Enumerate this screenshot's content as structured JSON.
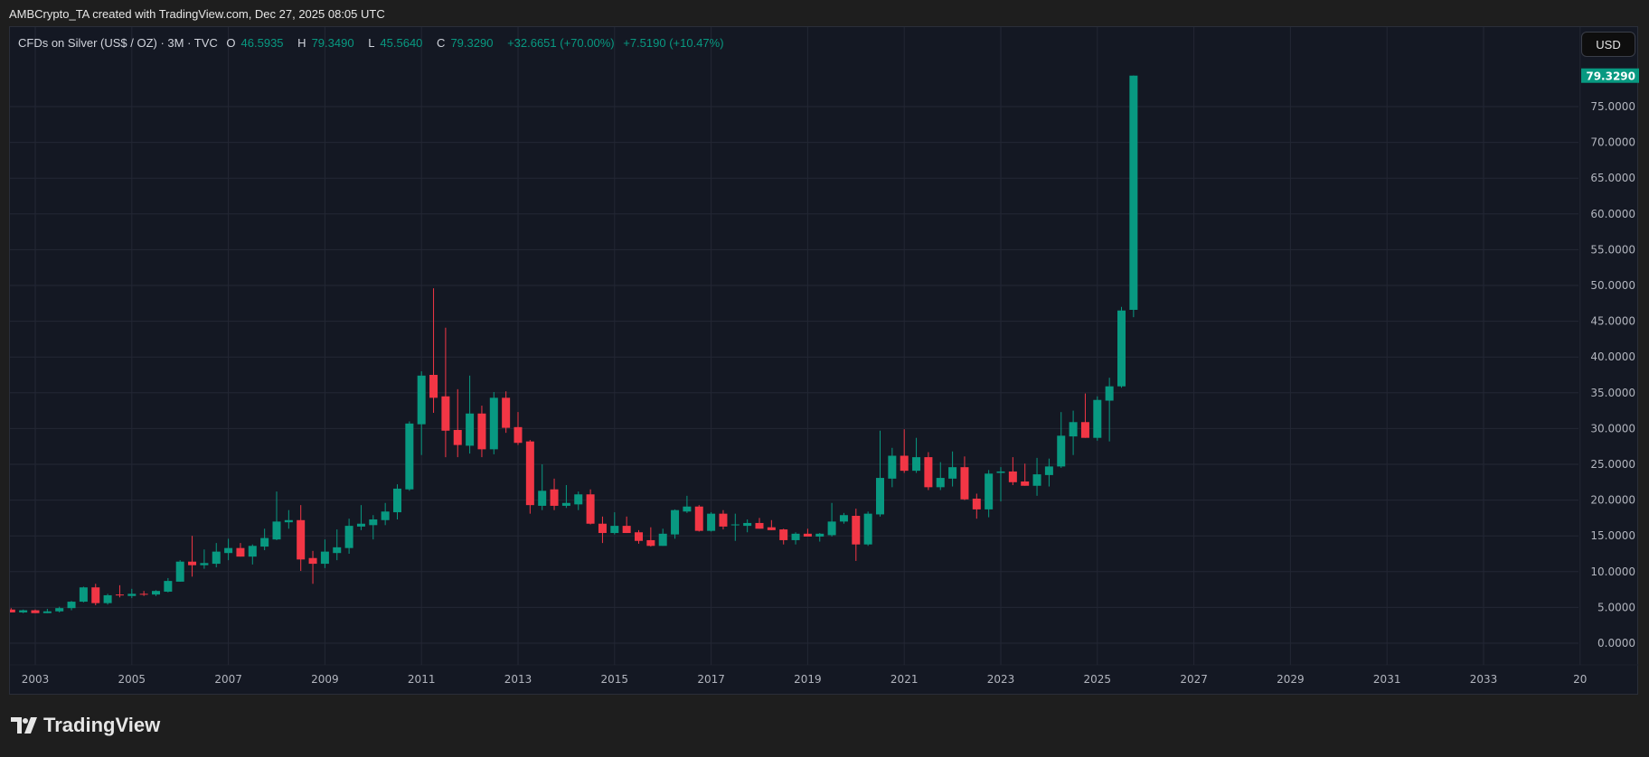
{
  "credit": "AMBCrypto_TA created with TradingView.com, Dec 27, 2025 08:05 UTC",
  "legend": {
    "symbol": "CFDs on Silver (US$ / OZ) · 3M · TVC",
    "o_label": "O",
    "o": "46.5935",
    "h_label": "H",
    "h": "79.3490",
    "l_label": "L",
    "l": "45.5640",
    "c_label": "C",
    "c": "79.3290",
    "change": "+32.6651 (+70.00%)",
    "change2": "+7.5190 (+10.47%)"
  },
  "currency_button": "USD",
  "logo_text": "TradingView",
  "colors": {
    "up": "#089981",
    "down": "#f23645",
    "background": "#141823",
    "grid": "#232734",
    "axis_text": "#b2b5be"
  },
  "chart_data": {
    "type": "candlestick",
    "interval": "3M",
    "ylim": [
      -3,
      84
    ],
    "xlim": [
      "2002 Q3",
      "2034"
    ],
    "grid": true,
    "current_price_label": "79.3290",
    "y_ticks": [
      "0.0000",
      "5.0000",
      "10.0000",
      "15.0000",
      "20.0000",
      "25.0000",
      "30.0000",
      "35.0000",
      "40.0000",
      "45.0000",
      "50.0000",
      "55.0000",
      "60.0000",
      "65.0000",
      "70.0000",
      "75.0000"
    ],
    "x_ticks": [
      "2003",
      "2005",
      "2007",
      "2009",
      "2011",
      "2013",
      "2015",
      "2017",
      "2019",
      "2021",
      "2023",
      "2025",
      "2027",
      "2029",
      "2031",
      "2033",
      "20"
    ],
    "candles": [
      [
        "2002 Q3",
        4.7,
        4.9,
        4.3,
        4.3
      ],
      [
        "2002 Q4",
        4.3,
        4.7,
        4.2,
        4.6
      ],
      [
        "2003 Q1",
        4.6,
        4.7,
        4.2,
        4.2
      ],
      [
        "2003 Q2",
        4.2,
        4.8,
        4.2,
        4.45
      ],
      [
        "2003 Q3",
        4.45,
        5.1,
        4.3,
        4.9
      ],
      [
        "2003 Q4",
        4.9,
        5.9,
        4.6,
        5.8
      ],
      [
        "2004 Q1",
        5.8,
        7.9,
        5.7,
        7.8
      ],
      [
        "2004 Q2",
        7.8,
        8.3,
        5.3,
        5.6
      ],
      [
        "2004 Q3",
        5.6,
        6.9,
        5.4,
        6.7
      ],
      [
        "2004 Q4",
        6.8,
        8.1,
        6.4,
        6.7
      ],
      [
        "2005 Q1",
        6.6,
        7.6,
        6.3,
        6.9
      ],
      [
        "2005 Q2",
        6.9,
        7.3,
        6.6,
        6.8
      ],
      [
        "2005 Q3",
        6.8,
        7.4,
        6.6,
        7.3
      ],
      [
        "2005 Q4",
        7.2,
        9.1,
        7.1,
        8.7
      ],
      [
        "2006 Q1",
        8.6,
        11.6,
        8.6,
        11.4
      ],
      [
        "2006 Q2",
        11.4,
        15.0,
        9.3,
        10.9
      ],
      [
        "2006 Q3",
        10.9,
        13.1,
        10.4,
        11.2
      ],
      [
        "2006 Q4",
        11.1,
        14.0,
        10.6,
        12.8
      ],
      [
        "2007 Q1",
        12.6,
        14.6,
        11.6,
        13.3
      ],
      [
        "2007 Q2",
        13.3,
        14.0,
        12.1,
        12.1
      ],
      [
        "2007 Q3",
        12.1,
        13.8,
        11.0,
        13.6
      ],
      [
        "2007 Q4",
        13.5,
        16.0,
        13.0,
        14.7
      ],
      [
        "2008 Q1",
        14.5,
        21.2,
        14.4,
        17.0
      ],
      [
        "2008 Q2",
        16.9,
        18.6,
        16.0,
        17.2
      ],
      [
        "2008 Q3",
        17.2,
        19.3,
        10.1,
        11.7
      ],
      [
        "2008 Q4",
        11.9,
        12.9,
        8.3,
        11.1
      ],
      [
        "2009 Q1",
        11.1,
        14.5,
        10.5,
        12.8
      ],
      [
        "2009 Q2",
        12.6,
        15.9,
        11.6,
        13.4
      ],
      [
        "2009 Q3",
        13.3,
        17.4,
        12.5,
        16.4
      ],
      [
        "2009 Q4",
        16.3,
        19.3,
        15.8,
        16.7
      ],
      [
        "2010 Q1",
        16.5,
        17.9,
        14.5,
        17.3
      ],
      [
        "2010 Q2",
        17.2,
        19.6,
        16.5,
        18.4
      ],
      [
        "2010 Q3",
        18.3,
        22.2,
        17.3,
        21.6
      ],
      [
        "2010 Q4",
        21.5,
        31.0,
        21.3,
        30.7
      ],
      [
        "2011 Q1",
        30.6,
        38.0,
        26.3,
        37.4
      ],
      [
        "2011 Q2",
        37.5,
        49.6,
        32.2,
        34.3
      ],
      [
        "2011 Q3",
        34.5,
        44.1,
        26.0,
        29.7
      ],
      [
        "2011 Q4",
        29.8,
        35.5,
        26.0,
        27.7
      ],
      [
        "2012 Q1",
        27.6,
        37.4,
        26.5,
        32.1
      ],
      [
        "2012 Q2",
        32.1,
        33.2,
        26.0,
        27.1
      ],
      [
        "2012 Q3",
        27.1,
        35.1,
        26.4,
        34.3
      ],
      [
        "2012 Q4",
        34.3,
        35.2,
        29.4,
        30.1
      ],
      [
        "2013 Q1",
        30.2,
        32.3,
        27.7,
        28.0
      ],
      [
        "2013 Q2",
        28.2,
        28.4,
        18.1,
        19.3
      ],
      [
        "2013 Q3",
        19.2,
        25.0,
        18.6,
        21.3
      ],
      [
        "2013 Q4",
        21.5,
        23.0,
        18.6,
        19.2
      ],
      [
        "2014 Q1",
        19.2,
        22.1,
        18.9,
        19.6
      ],
      [
        "2014 Q2",
        19.4,
        21.2,
        18.6,
        20.8
      ],
      [
        "2014 Q3",
        20.8,
        21.5,
        16.6,
        16.7
      ],
      [
        "2014 Q4",
        16.7,
        17.7,
        14.0,
        15.4
      ],
      [
        "2015 Q1",
        15.4,
        18.3,
        15.2,
        16.4
      ],
      [
        "2015 Q2",
        16.4,
        17.7,
        15.4,
        15.4
      ],
      [
        "2015 Q3",
        15.5,
        15.8,
        13.9,
        14.3
      ],
      [
        "2015 Q4",
        14.4,
        16.2,
        13.5,
        13.6
      ],
      [
        "2016 Q1",
        13.6,
        16.0,
        13.6,
        15.3
      ],
      [
        "2016 Q2",
        15.2,
        18.7,
        14.6,
        18.6
      ],
      [
        "2016 Q3",
        18.4,
        20.6,
        18.2,
        19.1
      ],
      [
        "2016 Q4",
        19.1,
        19.3,
        15.6,
        15.7
      ],
      [
        "2017 Q1",
        15.7,
        18.3,
        15.6,
        18.1
      ],
      [
        "2017 Q2",
        18.1,
        18.6,
        15.9,
        16.3
      ],
      [
        "2017 Q3",
        16.5,
        18.1,
        14.3,
        16.6
      ],
      [
        "2017 Q4",
        16.4,
        17.3,
        15.5,
        16.8
      ],
      [
        "2018 Q1",
        16.8,
        17.5,
        16.0,
        16.0
      ],
      [
        "2018 Q2",
        16.2,
        17.2,
        15.8,
        15.8
      ],
      [
        "2018 Q3",
        15.9,
        16.0,
        13.8,
        14.4
      ],
      [
        "2018 Q4",
        14.4,
        15.5,
        13.8,
        15.3
      ],
      [
        "2019 Q1",
        15.3,
        16.0,
        14.9,
        14.9
      ],
      [
        "2019 Q2",
        14.9,
        15.4,
        14.2,
        15.3
      ],
      [
        "2019 Q3",
        15.1,
        19.6,
        14.9,
        17.0
      ],
      [
        "2019 Q4",
        17.0,
        18.2,
        16.7,
        17.9
      ],
      [
        "2020 Q1",
        17.8,
        18.8,
        11.5,
        13.8
      ],
      [
        "2020 Q2",
        13.8,
        18.4,
        13.6,
        18.1
      ],
      [
        "2020 Q3",
        18.0,
        29.7,
        17.7,
        23.1
      ],
      [
        "2020 Q4",
        23.0,
        27.3,
        21.8,
        26.2
      ],
      [
        "2021 Q1",
        26.2,
        29.9,
        23.8,
        24.1
      ],
      [
        "2021 Q2",
        24.1,
        28.7,
        23.8,
        26.0
      ],
      [
        "2021 Q3",
        26.0,
        26.7,
        21.4,
        21.8
      ],
      [
        "2021 Q4",
        21.8,
        25.3,
        21.4,
        23.1
      ],
      [
        "2022 Q1",
        23.0,
        26.8,
        21.9,
        24.6
      ],
      [
        "2022 Q2",
        24.6,
        26.1,
        20.0,
        20.1
      ],
      [
        "2022 Q3",
        20.2,
        20.9,
        17.4,
        18.7
      ],
      [
        "2022 Q4",
        18.7,
        24.2,
        17.6,
        23.7
      ],
      [
        "2023 Q1",
        23.8,
        24.6,
        19.8,
        24.0
      ],
      [
        "2023 Q2",
        24.0,
        26.0,
        22.1,
        22.5
      ],
      [
        "2023 Q3",
        22.6,
        25.1,
        22.0,
        22.0
      ],
      [
        "2023 Q4",
        22.0,
        25.9,
        20.6,
        23.6
      ],
      [
        "2024 Q1",
        23.5,
        25.8,
        21.9,
        24.7
      ],
      [
        "2024 Q2",
        24.7,
        32.3,
        24.5,
        29.0
      ],
      [
        "2024 Q3",
        28.9,
        32.5,
        26.3,
        30.9
      ],
      [
        "2024 Q4",
        30.9,
        34.9,
        28.7,
        28.7
      ],
      [
        "2025 Q1",
        28.7,
        34.5,
        28.3,
        34.0
      ],
      [
        "2025 Q2",
        33.9,
        37.1,
        28.2,
        35.9
      ],
      [
        "2025 Q3",
        35.9,
        47.0,
        35.7,
        46.5
      ],
      [
        "2025 Q4",
        46.5935,
        79.349,
        45.564,
        79.329
      ]
    ]
  }
}
